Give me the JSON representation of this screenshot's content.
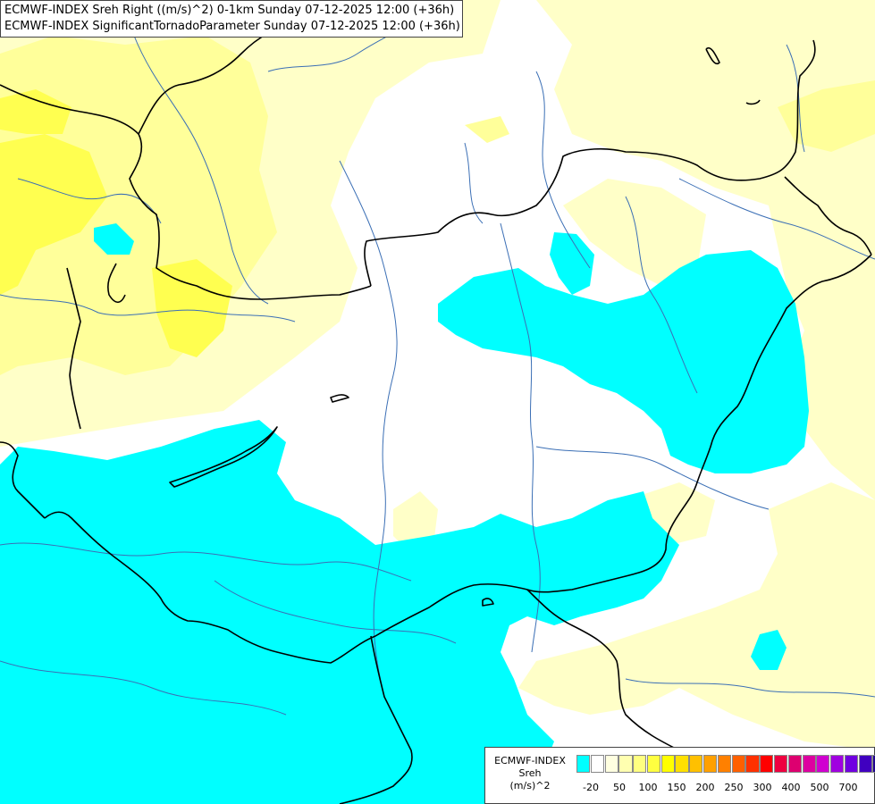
{
  "header": {
    "line1": "ECMWF-INDEX Sreh Right ((m/s)^2) 0-1km Sunday 07-12-2025 12:00 (+36h)",
    "line2": "ECMWF-INDEX SignificantTornadoParameter Sunday 07-12-2025 12:00 (+36h)"
  },
  "legend": {
    "title": "ECMWF-INDEX",
    "variable": "Sreh",
    "unit": "(m/s)^2",
    "colors": [
      "#00ffff",
      "#ffffff",
      "#ffffe0",
      "#ffffb0",
      "#ffff80",
      "#ffff40",
      "#ffff00",
      "#ffe000",
      "#ffc000",
      "#ffa000",
      "#ff8000",
      "#ff6000",
      "#ff3000",
      "#ff0000",
      "#ee0040",
      "#dd0070",
      "#dd00a0",
      "#d000d0",
      "#a000e0",
      "#7000e0",
      "#4000c0",
      "#200090",
      "#000080"
    ],
    "tick_labels": [
      "-20",
      "50",
      "100",
      "150",
      "200",
      "250",
      "300",
      "400",
      "500",
      "700"
    ]
  },
  "map_colors": {
    "cyan": "#00ffff",
    "pale_yellow": "#ffffc8",
    "light_yellow": "#ffff9a",
    "yellow": "#ffff50",
    "river": "#3b6fb5",
    "border": "#000000"
  }
}
